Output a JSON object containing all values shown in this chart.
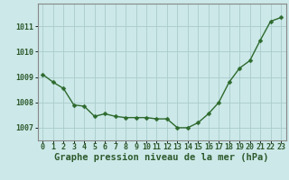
{
  "x": [
    0,
    1,
    2,
    3,
    4,
    5,
    6,
    7,
    8,
    9,
    10,
    11,
    12,
    13,
    14,
    15,
    16,
    17,
    18,
    19,
    20,
    21,
    22,
    23
  ],
  "y": [
    1009.1,
    1008.8,
    1008.55,
    1007.9,
    1007.85,
    1007.45,
    1007.55,
    1007.45,
    1007.4,
    1007.4,
    1007.4,
    1007.35,
    1007.35,
    1007.0,
    1007.0,
    1007.2,
    1007.55,
    1008.0,
    1008.8,
    1009.35,
    1009.65,
    1010.45,
    1011.2,
    1011.35
  ],
  "line_color": "#2d6a2d",
  "marker_color": "#2d6a2d",
  "bg_color": "#cce8e8",
  "grid_color": "#aacccc",
  "axis_color": "#888888",
  "xlabel": "Graphe pression niveau de la mer (hPa)",
  "xlabel_fontsize": 7.5,
  "ylabel_ticks": [
    1007,
    1008,
    1009,
    1010,
    1011
  ],
  "ylim": [
    1006.5,
    1011.9
  ],
  "xlim": [
    -0.5,
    23.5
  ],
  "tick_fontsize": 6.0,
  "marker_size": 2.5,
  "line_width": 1.0
}
